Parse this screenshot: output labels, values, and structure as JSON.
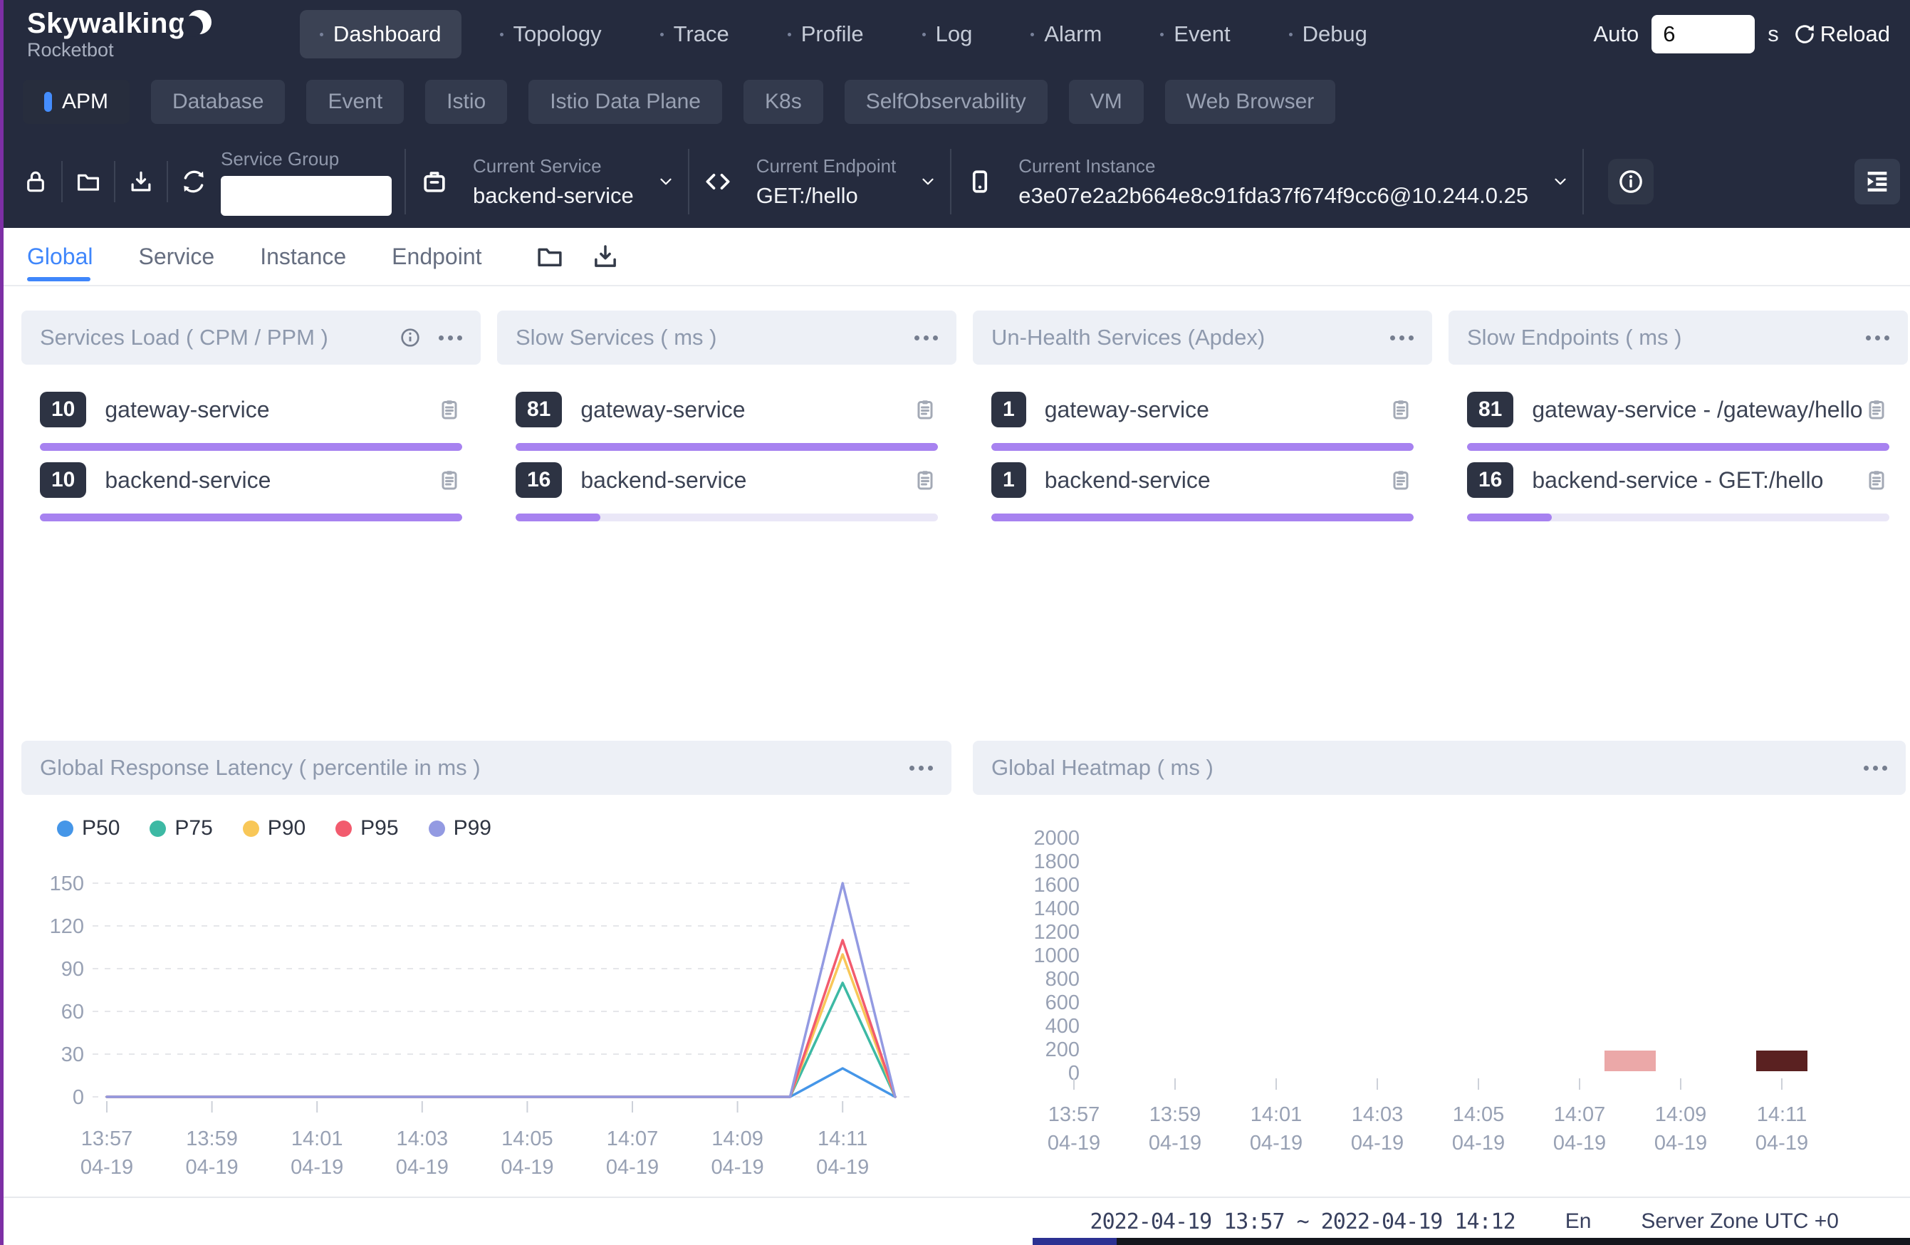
{
  "header": {
    "logo_title": "Skywalking",
    "logo_subtitle": "Rocketbot",
    "nav": [
      {
        "label": "Dashboard"
      },
      {
        "label": "Topology"
      },
      {
        "label": "Trace"
      },
      {
        "label": "Profile"
      },
      {
        "label": "Log"
      },
      {
        "label": "Alarm"
      },
      {
        "label": "Event"
      },
      {
        "label": "Debug"
      }
    ],
    "auto_label": "Auto",
    "auto_value": "6",
    "auto_unit": "s",
    "reload_label": "Reload"
  },
  "category_tabs": [
    {
      "label": "APM"
    },
    {
      "label": "Database"
    },
    {
      "label": "Event"
    },
    {
      "label": "Istio"
    },
    {
      "label": "Istio Data Plane"
    },
    {
      "label": "K8s"
    },
    {
      "label": "SelfObservability"
    },
    {
      "label": "VM"
    },
    {
      "label": "Web Browser"
    }
  ],
  "toolbar": {
    "service_group_label": "Service Group",
    "service_group_value": "",
    "current_service_label": "Current Service",
    "current_service_value": "backend-service",
    "current_endpoint_label": "Current Endpoint",
    "current_endpoint_value": "GET:/hello",
    "current_instance_label": "Current Instance",
    "current_instance_value": "e3e07e2a2b664e8c91fda37f674f9cc6@10.244.0.25"
  },
  "view_tabs": [
    {
      "label": "Global"
    },
    {
      "label": "Service"
    },
    {
      "label": "Instance"
    },
    {
      "label": "Endpoint"
    }
  ],
  "cards": [
    {
      "title": "Services Load ( CPM / PPM )",
      "items": [
        {
          "value": "10",
          "label": "gateway-service",
          "bar_width": "100%"
        },
        {
          "value": "10",
          "label": "backend-service",
          "bar_width": "100%"
        }
      ]
    },
    {
      "title": "Slow Services ( ms )",
      "items": [
        {
          "value": "81",
          "label": "gateway-service",
          "bar_width": "100%"
        },
        {
          "value": "16",
          "label": "backend-service",
          "bar_width": "20%"
        }
      ]
    },
    {
      "title": "Un-Health Services (Apdex)",
      "items": [
        {
          "value": "1",
          "label": "gateway-service",
          "bar_width": "100%"
        },
        {
          "value": "1",
          "label": "backend-service",
          "bar_width": "100%"
        }
      ]
    },
    {
      "title": "Slow Endpoints ( ms )",
      "items": [
        {
          "value": "81",
          "label": "gateway-service - /gateway/hello",
          "bar_width": "100%"
        },
        {
          "value": "16",
          "label": "backend-service - GET:/hello",
          "bar_width": "20%"
        }
      ]
    }
  ],
  "chart_data": [
    {
      "type": "line",
      "title": "Global Response Latency ( percentile in ms )",
      "x": [
        "13:57",
        "13:58",
        "13:59",
        "14:00",
        "14:01",
        "14:02",
        "14:03",
        "14:04",
        "14:05",
        "14:06",
        "14:07",
        "14:08",
        "14:09",
        "14:10",
        "14:11",
        "14:12"
      ],
      "x_date": "04-19",
      "tick_every": 2,
      "ylim": [
        0,
        150
      ],
      "yticks": [
        0,
        30,
        60,
        90,
        120,
        150
      ],
      "grid": "dashed",
      "legend_position": "top-left",
      "series": [
        {
          "name": "P50",
          "color": "#4596e8",
          "values": [
            0,
            0,
            0,
            0,
            0,
            0,
            0,
            0,
            0,
            0,
            0,
            0,
            0,
            0,
            20,
            0
          ]
        },
        {
          "name": "P75",
          "color": "#3db9a4",
          "values": [
            0,
            0,
            0,
            0,
            0,
            0,
            0,
            0,
            0,
            0,
            0,
            0,
            0,
            0,
            80,
            0
          ]
        },
        {
          "name": "P90",
          "color": "#f8c758",
          "values": [
            0,
            0,
            0,
            0,
            0,
            0,
            0,
            0,
            0,
            0,
            0,
            0,
            0,
            0,
            100,
            0
          ]
        },
        {
          "name": "P95",
          "color": "#f25b6e",
          "values": [
            0,
            0,
            0,
            0,
            0,
            0,
            0,
            0,
            0,
            0,
            0,
            0,
            0,
            0,
            110,
            0
          ]
        },
        {
          "name": "P99",
          "color": "#939ae2",
          "values": [
            0,
            0,
            0,
            0,
            0,
            0,
            0,
            0,
            0,
            0,
            0,
            0,
            0,
            0,
            150,
            0
          ]
        }
      ]
    },
    {
      "type": "heatmap",
      "title": "Global Heatmap ( ms )",
      "x": [
        "13:57",
        "13:58",
        "13:59",
        "14:00",
        "14:01",
        "14:02",
        "14:03",
        "14:04",
        "14:05",
        "14:06",
        "14:07",
        "14:08",
        "14:09",
        "14:10",
        "14:11",
        "14:12"
      ],
      "x_date": "04-19",
      "tick_every": 2,
      "ylim": [
        0,
        2000
      ],
      "yticks": [
        0,
        200,
        400,
        600,
        800,
        1000,
        1200,
        1400,
        1600,
        1800,
        2000
      ],
      "grid": "off",
      "cells": [
        {
          "x": "14:08",
          "y_bucket": [
            0,
            200
          ],
          "color": "#eba8a8"
        },
        {
          "x": "14:11",
          "y_bucket": [
            0,
            200
          ],
          "color": "#5a2121"
        }
      ]
    }
  ],
  "footer": {
    "time_range": "2022-04-19 13:57 ~ 2022-04-19 14:12",
    "lang": "En",
    "server_zone": "Server Zone UTC +0"
  }
}
